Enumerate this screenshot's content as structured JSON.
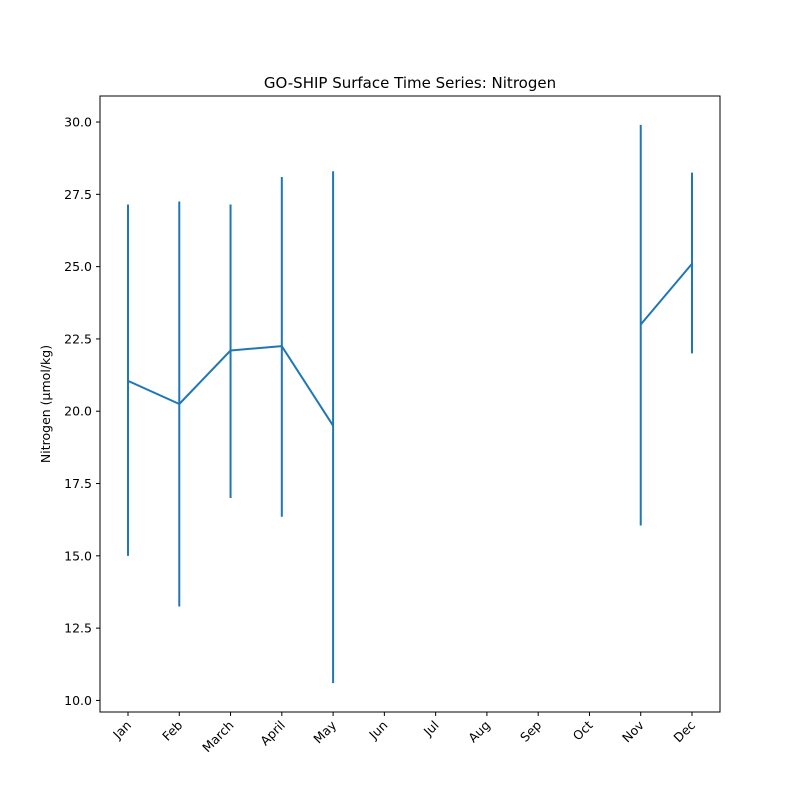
{
  "chart_data": {
    "type": "line",
    "title": "GO-SHIP Surface Time Series: Nitrogen",
    "xlabel": "",
    "ylabel": "Nitrogen (μmol/kg)",
    "categories": [
      "Jan",
      "Feb",
      "March",
      "April",
      "May",
      "Jun",
      "Jul",
      "Aug",
      "Sep",
      "Oct",
      "Nov",
      "Dec"
    ],
    "yticks": [
      "10.0",
      "12.5",
      "15.0",
      "17.5",
      "20.0",
      "22.5",
      "25.0",
      "27.5",
      "30.0"
    ],
    "ylim": [
      9.6,
      30.9
    ],
    "grid": false,
    "legend": "none",
    "color": "#1f77b4",
    "series": [
      {
        "values": [
          21.05,
          20.25,
          22.1,
          22.25,
          19.5,
          null,
          null,
          null,
          null,
          null,
          23.0,
          25.1
        ],
        "error_low": [
          15.0,
          13.25,
          17.0,
          16.35,
          10.6,
          null,
          null,
          null,
          null,
          null,
          16.05,
          22.0
        ],
        "error_high": [
          27.15,
          27.25,
          27.15,
          28.1,
          28.3,
          null,
          null,
          null,
          null,
          null,
          29.9,
          28.25
        ]
      }
    ]
  }
}
